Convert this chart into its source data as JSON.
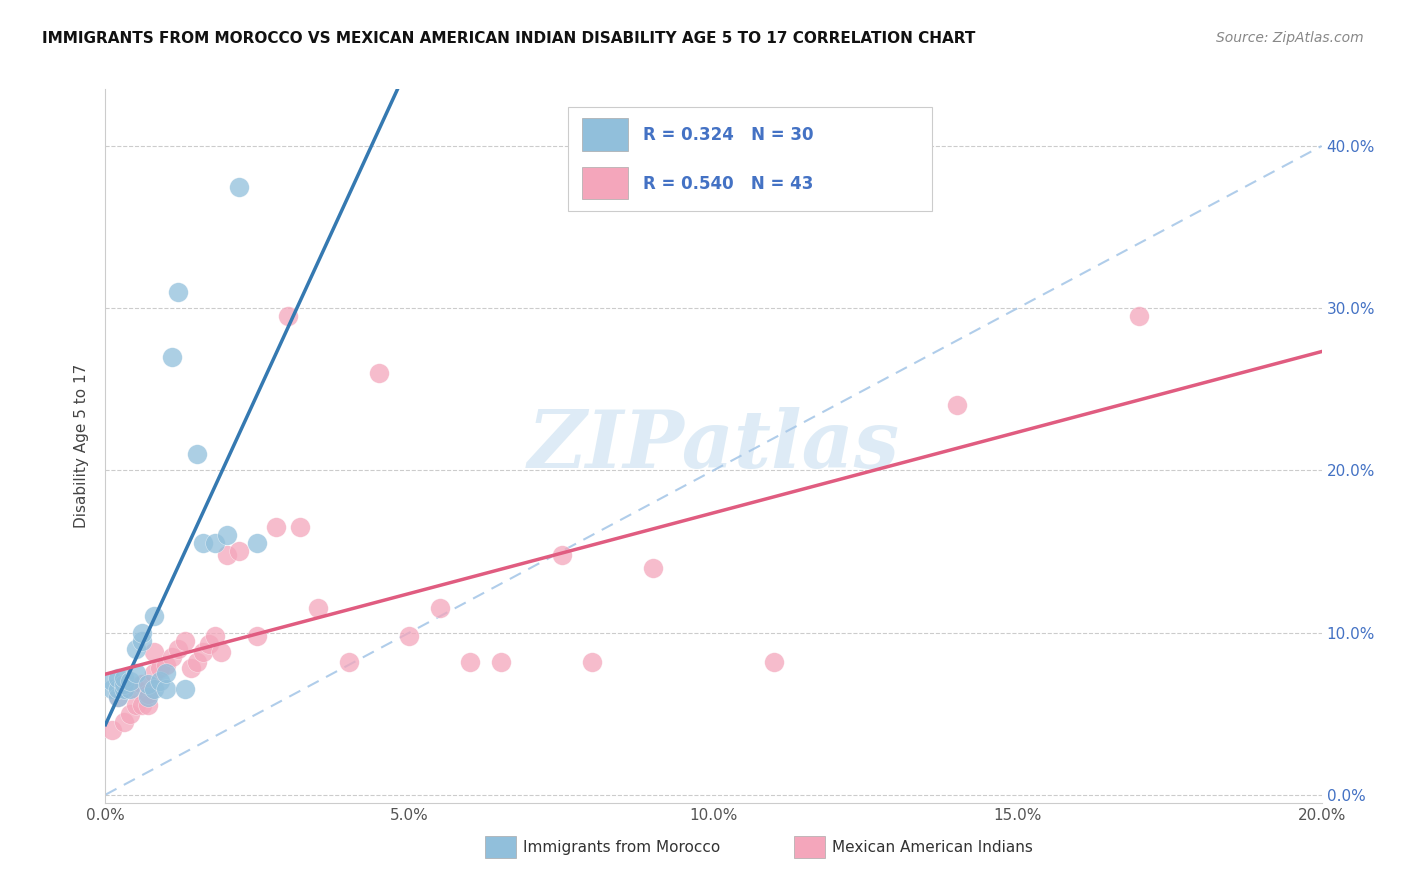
{
  "title": "IMMIGRANTS FROM MOROCCO VS MEXICAN AMERICAN INDIAN DISABILITY AGE 5 TO 17 CORRELATION CHART",
  "source": "Source: ZipAtlas.com",
  "ylabel": "Disability Age 5 to 17",
  "xlim": [
    0.0,
    0.2
  ],
  "ylim": [
    -0.005,
    0.435
  ],
  "xtick_vals": [
    0.0,
    0.05,
    0.1,
    0.15,
    0.2
  ],
  "xtick_labels": [
    "0.0%",
    "5.0%",
    "10.0%",
    "15.0%",
    "20.0%"
  ],
  "ytick_vals": [
    0.0,
    0.1,
    0.2,
    0.3,
    0.4
  ],
  "ytick_labels_right": [
    "0.0%",
    "10.0%",
    "20.0%",
    "30.0%",
    "40.0%"
  ],
  "legend1_r": "0.324",
  "legend1_n": "30",
  "legend2_r": "0.540",
  "legend2_n": "43",
  "color_morocco": "#91bfdb",
  "color_mexican": "#f4a6bb",
  "color_line_morocco": "#3579b1",
  "color_line_mexican": "#e05c80",
  "watermark": "ZIPatlas",
  "morocco_x": [
    0.001,
    0.001,
    0.002,
    0.002,
    0.002,
    0.003,
    0.003,
    0.003,
    0.004,
    0.004,
    0.005,
    0.005,
    0.006,
    0.006,
    0.007,
    0.007,
    0.008,
    0.008,
    0.009,
    0.01,
    0.01,
    0.011,
    0.012,
    0.013,
    0.015,
    0.016,
    0.018,
    0.02,
    0.022,
    0.025
  ],
  "morocco_y": [
    0.065,
    0.07,
    0.06,
    0.065,
    0.072,
    0.065,
    0.068,
    0.072,
    0.065,
    0.07,
    0.075,
    0.09,
    0.095,
    0.1,
    0.06,
    0.068,
    0.11,
    0.065,
    0.07,
    0.065,
    0.075,
    0.27,
    0.31,
    0.065,
    0.21,
    0.155,
    0.155,
    0.16,
    0.375,
    0.155
  ],
  "mexican_x": [
    0.001,
    0.002,
    0.003,
    0.003,
    0.004,
    0.005,
    0.005,
    0.006,
    0.006,
    0.007,
    0.007,
    0.008,
    0.008,
    0.009,
    0.01,
    0.011,
    0.012,
    0.013,
    0.014,
    0.015,
    0.016,
    0.017,
    0.018,
    0.019,
    0.02,
    0.022,
    0.025,
    0.028,
    0.03,
    0.032,
    0.035,
    0.04,
    0.045,
    0.05,
    0.055,
    0.06,
    0.065,
    0.075,
    0.08,
    0.09,
    0.11,
    0.14,
    0.17
  ],
  "mexican_y": [
    0.04,
    0.06,
    0.045,
    0.065,
    0.05,
    0.055,
    0.065,
    0.055,
    0.068,
    0.055,
    0.062,
    0.075,
    0.088,
    0.078,
    0.08,
    0.085,
    0.09,
    0.095,
    0.078,
    0.082,
    0.088,
    0.093,
    0.098,
    0.088,
    0.148,
    0.15,
    0.098,
    0.165,
    0.295,
    0.165,
    0.115,
    0.082,
    0.26,
    0.098,
    0.115,
    0.082,
    0.082,
    0.148,
    0.082,
    0.14,
    0.082,
    0.24,
    0.295
  ]
}
